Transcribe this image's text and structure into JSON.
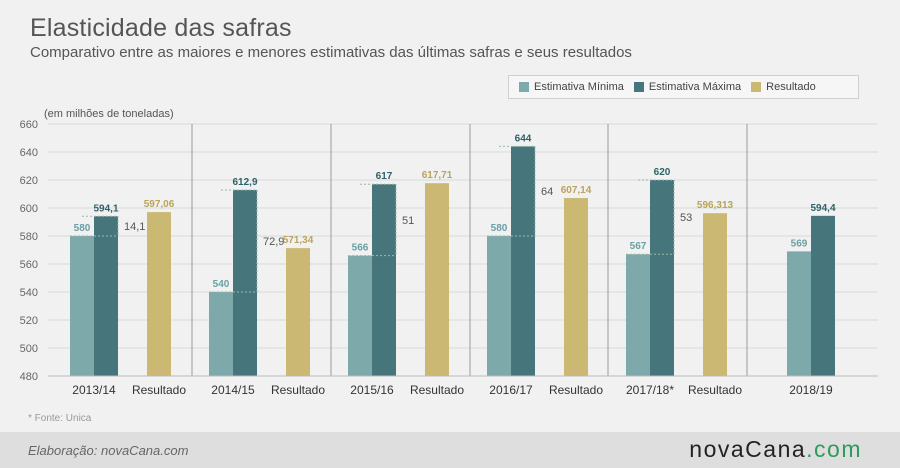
{
  "header": {
    "title": "Elasticidade das safras",
    "subtitle": "Comparativo entre as maiores e menores estimativas das últimas safras e seus resultados"
  },
  "legend": {
    "items": [
      {
        "label": "Estimativa Mínima",
        "color": "#7ea9aa"
      },
      {
        "label": "Estimativa Máxima",
        "color": "#46767b"
      },
      {
        "label": "Resultado",
        "color": "#cab873"
      }
    ]
  },
  "footnote": "* Fonte: Unica",
  "footer": {
    "credit": "Elaboração: novaCana.com",
    "brand_main": "novaCana",
    "brand_tld": ".com"
  },
  "colors": {
    "min": "#7ea9aa",
    "max": "#46767b",
    "result": "#cab873",
    "label_min": "#6a9fa3",
    "label_max": "#2f6268",
    "label_result": "#b8a45a",
    "axis_text": "#666666",
    "grid": "#d9d9d9",
    "separator": "#9a9a9a"
  },
  "chart_data": {
    "type": "bar",
    "ylabel": "(em milhões de toneladas)",
    "ylim": [
      480,
      660
    ],
    "yticks": [
      480,
      500,
      520,
      540,
      560,
      580,
      600,
      620,
      640,
      660
    ],
    "groups": [
      {
        "season": "2013/14",
        "min": 580,
        "min_label": "580",
        "max": 594.1,
        "max_label": "594,1",
        "diff_label": "14,1",
        "result": 597.06,
        "result_label": "597,06",
        "result_category": "Resultado"
      },
      {
        "season": "2014/15",
        "min": 540,
        "min_label": "540",
        "max": 612.9,
        "max_label": "612,9",
        "diff_label": "72,9",
        "result": 571.34,
        "result_label": "571,34",
        "result_category": "Resultado"
      },
      {
        "season": "2015/16",
        "min": 566,
        "min_label": "566",
        "max": 617,
        "max_label": "617",
        "diff_label": "51",
        "result": 617.71,
        "result_label": "617,71",
        "result_category": "Resultado"
      },
      {
        "season": "2016/17",
        "min": 580,
        "min_label": "580",
        "max": 644,
        "max_label": "644",
        "diff_label": "64",
        "result": 607.14,
        "result_label": "607,14",
        "result_category": "Resultado"
      },
      {
        "season": "2017/18*",
        "min": 567,
        "min_label": "567",
        "max": 620,
        "max_label": "620",
        "diff_label": "53",
        "result": 596.313,
        "result_label": "596,313",
        "result_category": "Resultado"
      },
      {
        "season": "2018/19",
        "min": 569,
        "min_label": "569",
        "max": 594.4,
        "max_label": "594,4",
        "diff_label": null,
        "result": null,
        "result_label": null,
        "result_category": null
      }
    ]
  }
}
